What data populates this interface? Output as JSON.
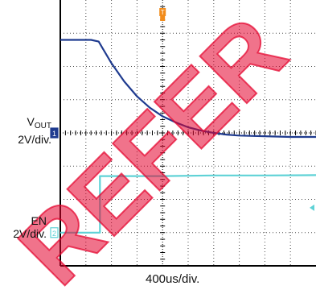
{
  "chart_data": {
    "type": "line",
    "title": "",
    "xlabel": "400us/div.",
    "x_units": "div",
    "y_units": "div",
    "xlim": [
      0,
      10
    ],
    "ylim": [
      -4,
      4
    ],
    "grid": true,
    "channel_labels": [
      {
        "id": "vout",
        "text_main": "V",
        "text_sub": "OUT",
        "scale": "2V/div.",
        "marker": "1",
        "offset_div": 0
      },
      {
        "id": "en",
        "text_main": "EN",
        "scale": "2V/div.",
        "marker": "2",
        "offset_div": -3
      }
    ],
    "trigger_marker": "T",
    "series": [
      {
        "id": "vout",
        "color": "#1f3b8f",
        "x": [
          0,
          1.2,
          1.5,
          2.0,
          2.5,
          3.0,
          3.5,
          4.0,
          4.5,
          5.0,
          5.5,
          6.0,
          6.5,
          7.0,
          8.0,
          9.0,
          10.0
        ],
        "y": [
          2.8,
          2.8,
          2.75,
          2.1,
          1.55,
          1.1,
          0.76,
          0.5,
          0.32,
          0.17,
          0.07,
          0.0,
          -0.05,
          -0.08,
          -0.1,
          -0.12,
          -0.12
        ]
      },
      {
        "id": "en",
        "color": "#5fd2d6",
        "x": [
          0,
          1.55,
          1.55,
          2.0,
          4.0,
          6.0,
          8.0,
          10.0
        ],
        "y": [
          -3.0,
          -3.0,
          -1.3,
          -1.3,
          -1.3,
          -1.28,
          -1.28,
          -1.27
        ]
      }
    ]
  },
  "colors": {
    "grid": "#000000",
    "grid_frame": "#000000",
    "vout_marker": "#1f3b8f",
    "en_marker": "#5fd2d6",
    "trigger": "#f28c1b",
    "watermark": "#e4002b"
  },
  "watermark_text": "REFER"
}
